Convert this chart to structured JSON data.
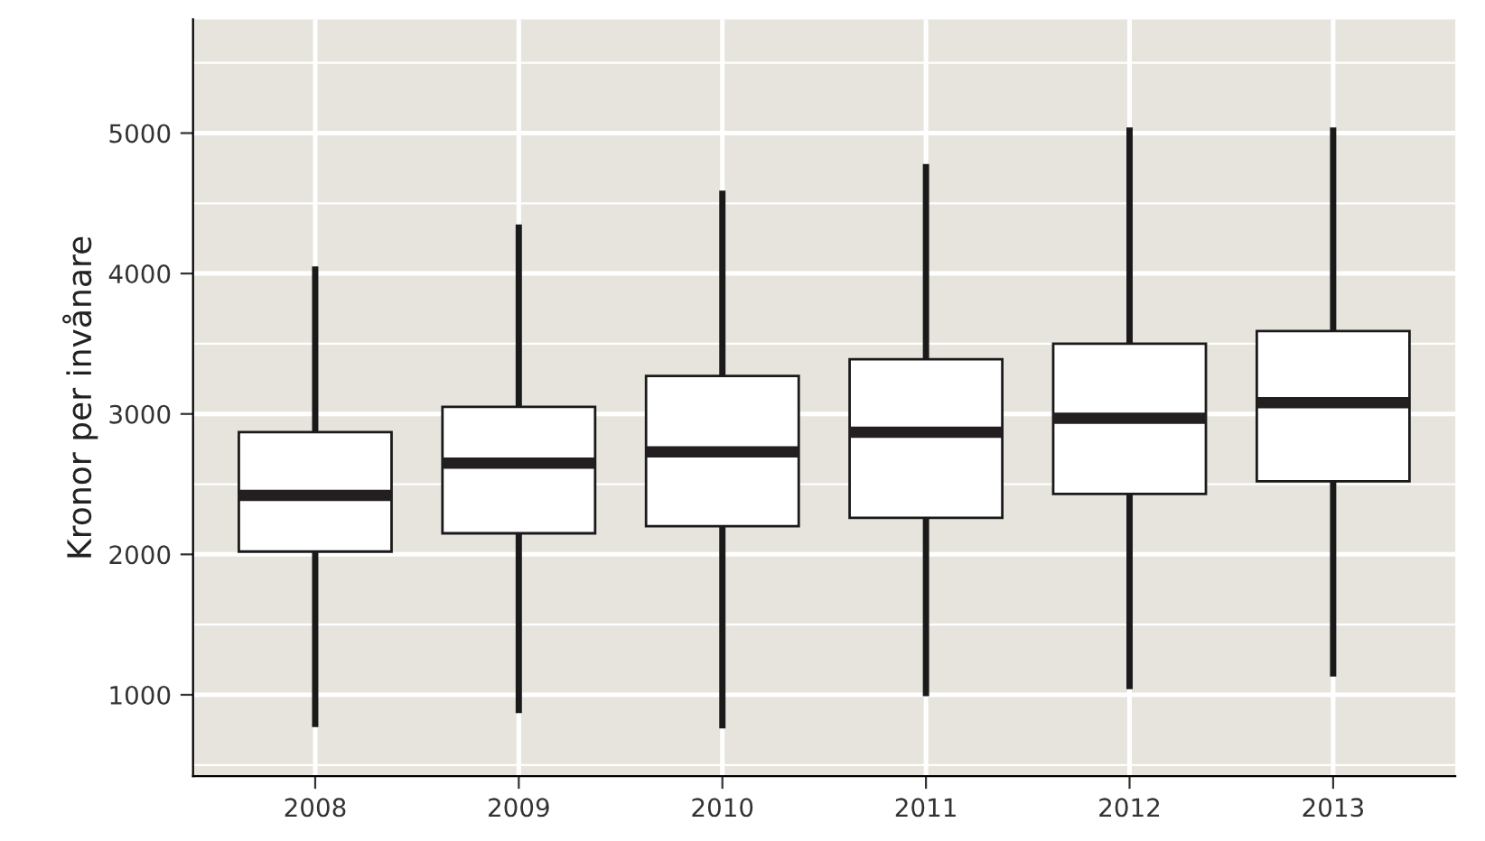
{
  "chart_data": {
    "type": "box",
    "ylabel": "Kronor per invånare",
    "categories": [
      "2008",
      "2009",
      "2010",
      "2011",
      "2012",
      "2013"
    ],
    "boxes": [
      {
        "low": 770,
        "q1": 2020,
        "median": 2420,
        "q3": 2870,
        "high": 4050
      },
      {
        "low": 870,
        "q1": 2150,
        "median": 2650,
        "q3": 3050,
        "high": 4350
      },
      {
        "low": 760,
        "q1": 2200,
        "median": 2730,
        "q3": 3270,
        "high": 4590
      },
      {
        "low": 990,
        "q1": 2260,
        "median": 2870,
        "q3": 3390,
        "high": 4780
      },
      {
        "low": 1040,
        "q1": 2430,
        "median": 2970,
        "q3": 3500,
        "high": 5040
      },
      {
        "low": 1130,
        "q1": 2520,
        "median": 3080,
        "q3": 3590,
        "high": 5040
      }
    ],
    "ylim": [
      420,
      5810
    ],
    "yticks": [
      1000,
      2000,
      3000,
      4000,
      5000
    ],
    "grid": true
  }
}
